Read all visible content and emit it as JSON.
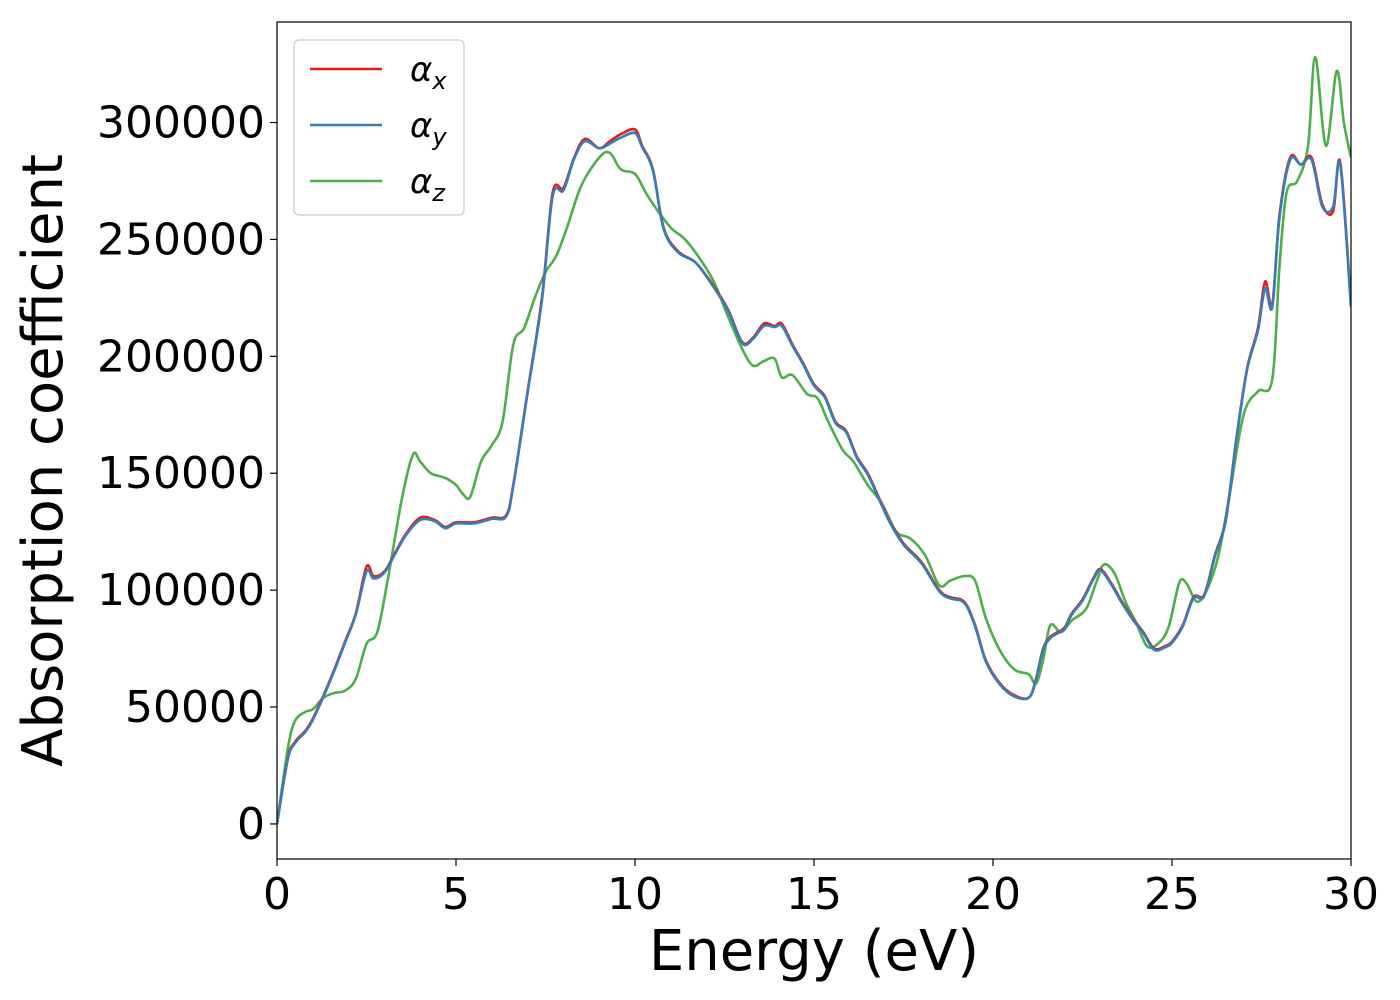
{
  "chart_data": {
    "type": "line",
    "xlabel": "Energy (eV)",
    "ylabel": "Absorption coefficient",
    "xlim": [
      0,
      30
    ],
    "ylim": [
      -15000,
      343000
    ],
    "xticks": [
      0,
      5,
      10,
      15,
      20,
      25,
      30
    ],
    "xtick_labels": [
      "0",
      "5",
      "10",
      "15",
      "20",
      "25",
      "30"
    ],
    "yticks": [
      0,
      50000,
      100000,
      150000,
      200000,
      250000,
      300000
    ],
    "ytick_labels": [
      "0",
      "50000",
      "100000",
      "150000",
      "200000",
      "250000",
      "300000"
    ],
    "grid": false,
    "legend_position": "top-left",
    "series": [
      {
        "name": "αx",
        "name_base": "α",
        "name_sub": "x",
        "color": "#e41a1c",
        "x": [
          0,
          0.3,
          0.5,
          0.8,
          1.0,
          1.3,
          1.6,
          1.9,
          2.2,
          2.5,
          2.7,
          3.0,
          3.3,
          3.6,
          4.0,
          4.4,
          4.7,
          5.0,
          5.5,
          6.0,
          6.4,
          6.6,
          7.0,
          7.4,
          7.7,
          8.0,
          8.3,
          8.6,
          9.0,
          9.3,
          9.6,
          10.0,
          10.2,
          10.5,
          10.8,
          11.2,
          11.7,
          12.2,
          12.6,
          13.0,
          13.3,
          13.6,
          13.9,
          14.1,
          14.4,
          14.7,
          15.0,
          15.3,
          15.6,
          15.9,
          16.2,
          16.5,
          16.8,
          17.1,
          17.5,
          18.0,
          18.5,
          18.8,
          19.2,
          19.5,
          19.8,
          20.2,
          20.6,
          21.0,
          21.2,
          21.4,
          21.6,
          21.8,
          22.0,
          22.2,
          22.5,
          22.8,
          23.0,
          23.3,
          23.6,
          23.9,
          24.2,
          24.5,
          24.8,
          25.0,
          25.3,
          25.6,
          25.9,
          26.2,
          26.5,
          26.8,
          27.1,
          27.4,
          27.6,
          27.8,
          28.0,
          28.3,
          28.6,
          28.9,
          29.2,
          29.5,
          29.7,
          30.0
        ],
        "y": [
          0,
          28000,
          35000,
          40000,
          45000,
          55000,
          66000,
          78000,
          90000,
          110000,
          106000,
          108000,
          116000,
          124000,
          131000,
          130000,
          127000,
          129000,
          129000,
          131000,
          132000,
          145000,
          185000,
          225000,
          270000,
          272000,
          285000,
          293000,
          289000,
          292000,
          295000,
          297000,
          290000,
          280000,
          255000,
          245000,
          240000,
          230000,
          220000,
          206000,
          208000,
          214000,
          213000,
          214000,
          205000,
          197000,
          188000,
          183000,
          172000,
          168000,
          157000,
          150000,
          140000,
          130000,
          120000,
          112000,
          100000,
          97000,
          95000,
          85000,
          70000,
          60000,
          55000,
          54000,
          62000,
          75000,
          80000,
          82000,
          84000,
          90000,
          96000,
          105000,
          109000,
          103000,
          95000,
          88000,
          82000,
          75000,
          76000,
          78000,
          85000,
          97000,
          98000,
          115000,
          130000,
          165000,
          195000,
          212000,
          232000,
          222000,
          260000,
          285000,
          282000,
          285000,
          265000,
          262000,
          283000,
          222000
        ]
      },
      {
        "name": "αy",
        "name_base": "α",
        "name_sub": "y",
        "color": "#377eb8",
        "x": [
          0,
          0.3,
          0.5,
          0.8,
          1.0,
          1.3,
          1.6,
          1.9,
          2.2,
          2.5,
          2.7,
          3.0,
          3.3,
          3.6,
          4.0,
          4.4,
          4.7,
          5.0,
          5.5,
          6.0,
          6.4,
          6.6,
          7.0,
          7.4,
          7.7,
          8.0,
          8.3,
          8.6,
          9.0,
          9.3,
          9.6,
          10.0,
          10.2,
          10.5,
          10.8,
          11.2,
          11.7,
          12.2,
          12.6,
          13.0,
          13.3,
          13.6,
          13.9,
          14.1,
          14.4,
          14.7,
          15.0,
          15.3,
          15.6,
          15.9,
          16.2,
          16.5,
          16.8,
          17.1,
          17.5,
          18.0,
          18.5,
          18.8,
          19.2,
          19.5,
          19.8,
          20.2,
          20.6,
          21.0,
          21.2,
          21.4,
          21.6,
          21.8,
          22.0,
          22.2,
          22.5,
          22.8,
          23.0,
          23.3,
          23.6,
          23.9,
          24.2,
          24.5,
          24.8,
          25.0,
          25.3,
          25.6,
          25.9,
          26.2,
          26.5,
          26.8,
          27.1,
          27.4,
          27.6,
          27.8,
          28.0,
          28.3,
          28.6,
          28.9,
          29.2,
          29.5,
          29.7,
          30.0
        ],
        "y": [
          0,
          27500,
          34500,
          39500,
          44500,
          54500,
          65500,
          77500,
          89500,
          108000,
          105000,
          107500,
          115500,
          123500,
          130000,
          129500,
          126500,
          128500,
          128500,
          130500,
          131500,
          144500,
          184500,
          224000,
          268500,
          271000,
          284500,
          292000,
          289000,
          291000,
          293500,
          295500,
          289500,
          279500,
          254500,
          244500,
          240000,
          229500,
          219500,
          205500,
          207500,
          213000,
          212500,
          213000,
          204500,
          196500,
          187500,
          182500,
          171500,
          167500,
          156500,
          149500,
          139500,
          129500,
          119500,
          111500,
          99500,
          96500,
          94500,
          84500,
          69500,
          59500,
          54500,
          54000,
          61500,
          74500,
          79500,
          81500,
          83500,
          89500,
          95500,
          104500,
          108500,
          102500,
          94500,
          87500,
          81500,
          74500,
          75500,
          77500,
          84500,
          96500,
          97500,
          114500,
          129500,
          164500,
          194500,
          211000,
          229000,
          221000,
          259000,
          284000,
          282000,
          284000,
          264000,
          264000,
          282000,
          221000
        ]
      },
      {
        "name": "αz",
        "name_base": "α",
        "name_sub": "z",
        "color": "#4daf4a",
        "x": [
          0,
          0.3,
          0.5,
          0.8,
          1.0,
          1.3,
          1.6,
          1.9,
          2.2,
          2.5,
          2.8,
          3.1,
          3.5,
          3.8,
          4.0,
          4.3,
          4.7,
          5.0,
          5.2,
          5.4,
          5.7,
          6.0,
          6.3,
          6.6,
          6.9,
          7.2,
          7.5,
          7.8,
          8.1,
          8.5,
          9.0,
          9.3,
          9.6,
          10.0,
          10.3,
          10.6,
          11.0,
          11.4,
          11.8,
          12.2,
          12.6,
          13.0,
          13.3,
          13.6,
          13.9,
          14.1,
          14.4,
          14.8,
          15.1,
          15.4,
          15.8,
          16.1,
          16.5,
          16.9,
          17.3,
          17.7,
          18.1,
          18.5,
          18.8,
          19.2,
          19.5,
          19.8,
          20.2,
          20.6,
          21.0,
          21.2,
          21.4,
          21.6,
          21.9,
          22.2,
          22.6,
          22.9,
          23.1,
          23.4,
          23.7,
          24.0,
          24.3,
          24.6,
          24.9,
          25.2,
          25.4,
          25.7,
          26.0,
          26.3,
          26.6,
          27.0,
          27.4,
          27.8,
          28.0,
          28.2,
          28.5,
          28.8,
          29.0,
          29.3,
          29.6,
          29.8,
          30.0
        ],
        "y": [
          0,
          32000,
          44000,
          48000,
          49000,
          54000,
          56000,
          57000,
          62000,
          77000,
          82000,
          105000,
          140000,
          158000,
          155000,
          150000,
          148000,
          145000,
          141000,
          140000,
          155000,
          162000,
          172000,
          205000,
          212000,
          225000,
          236000,
          243000,
          255000,
          273000,
          285000,
          287000,
          280000,
          278000,
          270000,
          263000,
          255000,
          250000,
          242000,
          232000,
          217000,
          203000,
          196000,
          198000,
          199000,
          191000,
          192000,
          184000,
          182000,
          172000,
          160000,
          155000,
          145000,
          137000,
          125000,
          122000,
          115000,
          102000,
          104000,
          106000,
          104000,
          88000,
          74000,
          66000,
          64000,
          60000,
          70000,
          85000,
          82000,
          87000,
          92000,
          104000,
          111000,
          107000,
          95000,
          86000,
          76000,
          77000,
          84000,
          103000,
          103000,
          95000,
          101000,
          115000,
          140000,
          175000,
          185000,
          190000,
          238000,
          270000,
          275000,
          290000,
          328000,
          290000,
          322000,
          300000,
          285000
        ]
      }
    ]
  }
}
